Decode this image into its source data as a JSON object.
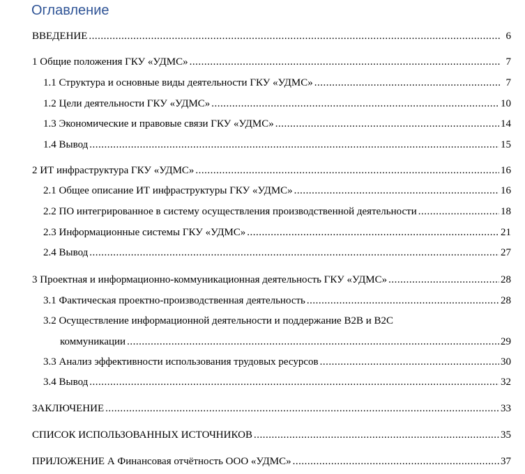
{
  "title": "Оглавление",
  "entries": [
    {
      "text": "ВВЕДЕНИЕ",
      "page": "6"
    },
    {
      "text": "1 Общие положения ГКУ «УДМС»",
      "page": "7"
    },
    {
      "text": "1.1 Структура и основные виды деятельности ГКУ «УДМС»",
      "page": "7"
    },
    {
      "text": "1.2 Цели деятельности ГКУ «УДМС»",
      "page": "10"
    },
    {
      "text": "1.3 Экономические и правовые связи ГКУ «УДМС»",
      "page": "14"
    },
    {
      "text": "1.4 Вывод",
      "page": "15"
    },
    {
      "text": "2 ИТ инфраструктура ГКУ «УДМС»",
      "page": "16"
    },
    {
      "text": "2.1 Общее описание ИТ инфраструктуры ГКУ «УДМС»",
      "page": "16"
    },
    {
      "text": "2.2 ПО интегрированное в систему осуществления производственной деятельности",
      "page": "18"
    },
    {
      "text": "2.3 Информационные системы ГКУ «УДМС»",
      "page": "21"
    },
    {
      "text": "2.4 Вывод",
      "page": "27"
    },
    {
      "text": "3 Проектная и информационно-коммуникационная  деятельность ГКУ «УДМС»",
      "page": "28"
    },
    {
      "text": "3.1 Фактическая проектно-производственная деятельность",
      "page": "28"
    },
    {
      "text": "3.2 Осуществление информационной  деятельности и поддержание B2B и B2C",
      "text2": "коммуникации",
      "page": "29"
    },
    {
      "text": "3.3 Анализ эффективности использования трудовых ресурсов",
      "page": "30"
    },
    {
      "text": "3.4 Вывод",
      "page": "32"
    },
    {
      "text": "ЗАКЛЮЧЕНИЕ",
      "page": "33"
    },
    {
      "text": "СПИСОК ИСПОЛЬЗОВАННЫХ ИСТОЧНИКОВ",
      "page": "35"
    },
    {
      "text": "ПРИЛОЖЕНИЕ А Финансовая отчётность ООО «УДМС»",
      "page": "37"
    }
  ]
}
